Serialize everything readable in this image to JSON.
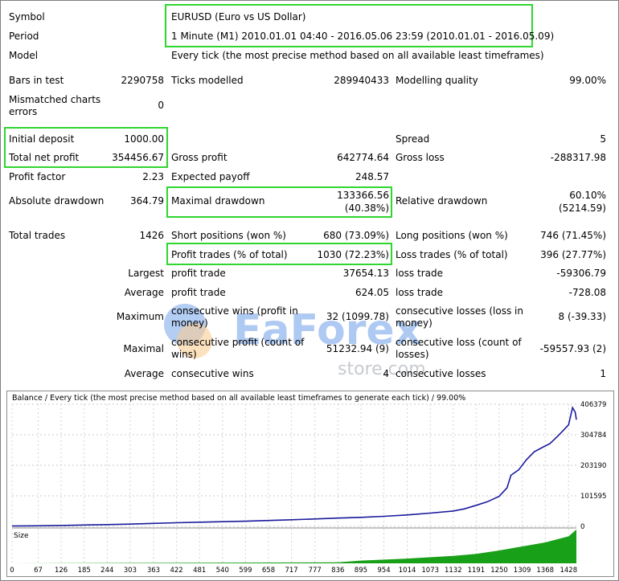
{
  "report": {
    "symbol_label": "Symbol",
    "symbol_value": "EURUSD (Euro vs US Dollar)",
    "period_label": "Period",
    "period_value": "1 Minute (M1) 2010.01.01 04:40 - 2016.05.06 23:59 (2010.01.01 - 2016.05.09)",
    "model_label": "Model",
    "model_value": "Every tick (the most precise method based on all available least timeframes)",
    "bars_label": "Bars in test",
    "bars_value": "2290758",
    "ticks_label": "Ticks modelled",
    "ticks_value": "289940433",
    "quality_label": "Modelling quality",
    "quality_value": "99.00%",
    "mismatch_label_1": "Mismatched charts",
    "mismatch_label_2": "errors",
    "mismatch_value": "0",
    "initial_deposit_label": "Initial deposit",
    "initial_deposit_value": "1000.00",
    "spread_label": "Spread",
    "spread_value": "5",
    "net_profit_label": "Total net profit",
    "net_profit_value": "354456.67",
    "gross_profit_label": "Gross profit",
    "gross_profit_value": "642774.64",
    "gross_loss_label": "Gross loss",
    "gross_loss_value": "-288317.98",
    "profit_factor_label": "Profit factor",
    "profit_factor_value": "2.23",
    "expected_payoff_label": "Expected payoff",
    "expected_payoff_value": "248.57",
    "abs_drawdown_label": "Absolute drawdown",
    "abs_drawdown_value": "364.79",
    "max_drawdown_label": "Maximal drawdown",
    "max_drawdown_value_1": "133366.56",
    "max_drawdown_value_2": "(40.38%)",
    "rel_drawdown_label": "Relative drawdown",
    "rel_drawdown_value_1": "60.10%",
    "rel_drawdown_value_2": "(5214.59)",
    "total_trades_label": "Total trades",
    "total_trades_value": "1426",
    "short_label": "Short positions (won %)",
    "short_value": "680 (73.09%)",
    "long_label": "Long positions (won %)",
    "long_value": "746 (71.45%)",
    "profit_trades_label": "Profit trades (% of total)",
    "profit_trades_value": "1030 (72.23%)",
    "loss_trades_label": "Loss trades (% of total)",
    "loss_trades_value": "396 (27.77%)",
    "largest_label": "Largest",
    "largest_profit_label": "profit trade",
    "largest_profit_value": "37654.13",
    "largest_loss_label": "loss trade",
    "largest_loss_value": "-59306.79",
    "average_label": "Average",
    "average_profit_label": "profit trade",
    "average_profit_value": "624.05",
    "average_loss_label": "loss trade",
    "average_loss_value": "-728.08",
    "maximum_label": "Maximum",
    "max_cons_wins_label_1": "consecutive wins (profit in",
    "max_cons_wins_label_2": "money)",
    "max_cons_wins_value": "32 (1099.78)",
    "max_cons_losses_label_1": "consecutive losses (loss in",
    "max_cons_losses_label_2": "money)",
    "max_cons_losses_value": "8 (-39.33)",
    "maximal_label": "Maximal",
    "maximal_profit_label_1": "consecutive profit (count of",
    "maximal_profit_label_2": "wins)",
    "maximal_profit_value": "51232.94 (9)",
    "maximal_loss_label_1": "consecutive loss (count of",
    "maximal_loss_label_2": "losses)",
    "maximal_loss_value": "-59557.93 (2)",
    "average2_label": "Average",
    "avg_cons_wins_label": "consecutive wins",
    "avg_cons_wins_value": "4",
    "avg_cons_losses_label": "consecutive losses",
    "avg_cons_losses_value": "1"
  },
  "watermark": {
    "brand": "EaForex",
    "sub": "store.com"
  },
  "chart": {
    "caption": "Balance / Every tick (the most precise method based on all available least timeframes to generate each tick) / 99.00%",
    "size_label": "Size"
  },
  "chart_data": {
    "type": "line",
    "title": "Balance / Every tick (the most precise method based on all available least timeframes to generate each tick) / 99.00%",
    "xlabel": "",
    "ylabel": "",
    "y_ticks": [
      "406379",
      "304784",
      "203190",
      "101595",
      "0"
    ],
    "ylim": [
      0,
      406379
    ],
    "x_ticks": [
      "0",
      "67",
      "126",
      "185",
      "244",
      "303",
      "363",
      "422",
      "481",
      "540",
      "599",
      "658",
      "717",
      "777",
      "836",
      "895",
      "954",
      "1014",
      "1073",
      "1132",
      "1191",
      "1250",
      "1309",
      "1368",
      "1428"
    ],
    "xlim": [
      0,
      1448
    ],
    "series": [
      {
        "color": "#1a1a9c",
        "x": [
          0,
          67,
          126,
          185,
          244,
          303,
          363,
          422,
          481,
          540,
          599,
          658,
          717,
          777,
          836,
          895,
          954,
          1014,
          1073,
          1132,
          1160,
          1191,
          1220,
          1250,
          1270,
          1280,
          1300,
          1320,
          1340,
          1360,
          1380,
          1400,
          1415,
          1428,
          1438,
          1445,
          1448
        ],
        "y": [
          1000,
          2000,
          3000,
          4500,
          6000,
          7500,
          10000,
          12000,
          14000,
          15500,
          17000,
          19500,
          22000,
          24500,
          27500,
          30000,
          33500,
          38000,
          44000,
          51000,
          58000,
          70000,
          82000,
          100000,
          128000,
          170000,
          188000,
          222000,
          248000,
          262000,
          275000,
          300000,
          320000,
          338000,
          395000,
          380000,
          355000
        ]
      }
    ],
    "size_series": {
      "color": "#18a018",
      "x": [
        0,
        836,
        895,
        1014,
        1132,
        1191,
        1250,
        1309,
        1368,
        1428,
        1448
      ],
      "y": [
        0,
        0.03,
        0.08,
        0.14,
        0.22,
        0.28,
        0.38,
        0.5,
        0.62,
        0.8,
        1.0
      ]
    },
    "grid": true,
    "legend": "none"
  }
}
